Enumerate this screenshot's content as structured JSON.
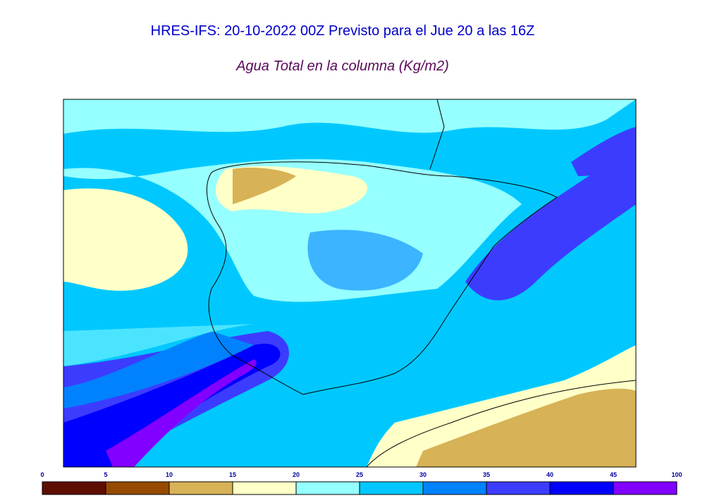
{
  "header": {
    "title": "HRES-IFS: 20-10-2022 00Z Previsto para el Jue 20 a las 16Z",
    "subtitle": "Agua Total en la columna (Kg/m2)"
  },
  "colorbar": {
    "ticks": [
      0,
      5,
      10,
      15,
      20,
      25,
      30,
      35,
      40,
      45,
      100
    ],
    "colors": [
      "#5e0e00",
      "#964b00",
      "#d7b256",
      "#ffffc8",
      "#96ffff",
      "#00c8ff",
      "#0082ff",
      "#3c3cff",
      "#0000ff",
      "#8200ff"
    ]
  }
}
